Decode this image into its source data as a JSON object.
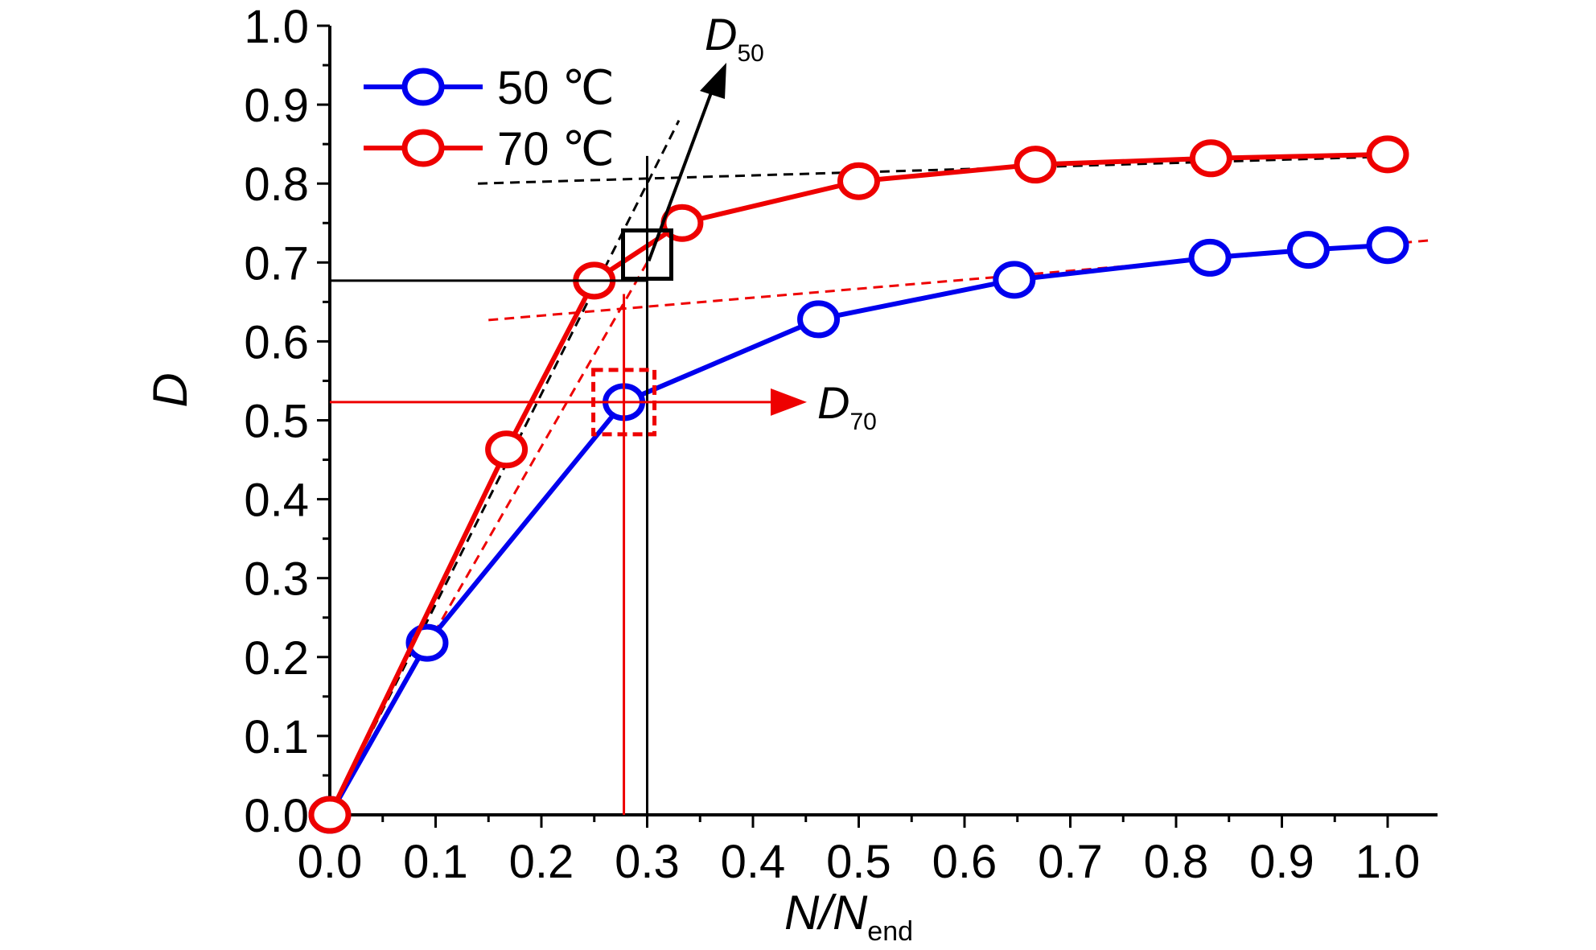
{
  "chart_data": {
    "type": "line",
    "xlabel": "N/N",
    "xlabel_sub": "end",
    "ylabel": "D",
    "xlim": [
      0,
      1.0
    ],
    "ylim": [
      0,
      1.0
    ],
    "x_ticks": [
      "0.0",
      "0.1",
      "0.2",
      "0.3",
      "0.4",
      "0.5",
      "0.6",
      "0.7",
      "0.8",
      "0.9",
      "1.0"
    ],
    "y_ticks": [
      "0.0",
      "0.1",
      "0.2",
      "0.3",
      "0.4",
      "0.5",
      "0.6",
      "0.7",
      "0.8",
      "0.9",
      "1.0"
    ],
    "legend_position": "top-left",
    "series": [
      {
        "name": "50 ℃",
        "color": "#0000ee",
        "x": [
          0.0,
          0.092,
          0.278,
          0.462,
          0.647,
          0.832,
          0.925,
          1.0
        ],
        "y": [
          0.0,
          0.218,
          0.523,
          0.628,
          0.678,
          0.706,
          0.716,
          0.722
        ]
      },
      {
        "name": "70 ℃",
        "color": "#ee0000",
        "x": [
          0.0,
          0.167,
          0.25,
          0.333,
          0.5,
          0.667,
          0.833,
          1.0
        ],
        "y": [
          0.0,
          0.463,
          0.677,
          0.75,
          0.803,
          0.824,
          0.832,
          0.837
        ]
      }
    ],
    "annotations": {
      "d50": {
        "label": "D",
        "sub": "50",
        "color": "#000000",
        "intersect_x": 0.3,
        "intersect_y": 0.677,
        "box_y": 0.71
      },
      "d70": {
        "label": "D",
        "sub": "70",
        "color": "#ee0000",
        "intersect_x": 0.278,
        "intersect_y": 0.523
      }
    },
    "reference_lines": [
      {
        "color": "#000000",
        "dashed": true,
        "x": [
          0.0,
          0.33
        ],
        "y": [
          0.0,
          0.88
        ]
      },
      {
        "color": "#000000",
        "dashed": true,
        "x": [
          0.14,
          1.02
        ],
        "y": [
          0.8,
          0.835
        ]
      },
      {
        "color": "#ee0000",
        "dashed": true,
        "x": [
          0.0,
          0.3
        ],
        "y": [
          0.0,
          0.7
        ]
      },
      {
        "color": "#ee0000",
        "dashed": true,
        "x": [
          0.15,
          1.04
        ],
        "y": [
          0.627,
          0.728
        ]
      }
    ]
  }
}
